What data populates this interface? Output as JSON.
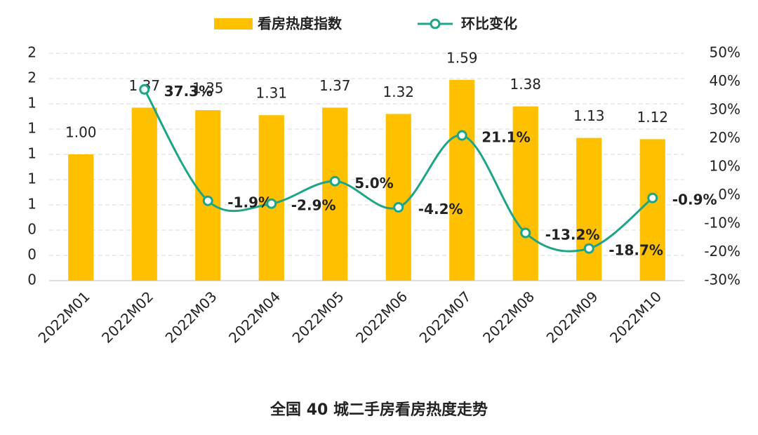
{
  "chart_data": {
    "type": "bar_line",
    "title": "全国 40 城二手房看房热度走势",
    "categories": [
      "2022M01",
      "2022M02",
      "2022M03",
      "2022M04",
      "2022M05",
      "2022M06",
      "2022M07",
      "2022M08",
      "2022M09",
      "2022M10"
    ],
    "series": [
      {
        "name": "看房热度指数",
        "color": "#FFC000",
        "type": "bar",
        "axis": "y",
        "values": [
          1.0,
          1.37,
          1.35,
          1.31,
          1.37,
          1.32,
          1.59,
          1.38,
          1.13,
          1.12
        ],
        "value_labels": [
          "1.00",
          "1.37",
          "1.35",
          "1.31",
          "1.37",
          "1.32",
          "1.59",
          "1.38",
          "1.13",
          "1.12"
        ]
      },
      {
        "name": "环比变化",
        "color": "#1DA587",
        "type": "line",
        "axis": "y2",
        "values": [
          null,
          37.3,
          -1.9,
          -2.9,
          5.0,
          -4.2,
          21.1,
          -13.2,
          -18.7,
          -0.9
        ],
        "value_labels": [
          null,
          "37.3%",
          "-1.9%",
          "-2.9%",
          "5.0%",
          "-4.2%",
          "21.1%",
          "-13.2%",
          "-18.7%",
          "-0.9%"
        ]
      }
    ],
    "ylim": [
      0,
      1.8
    ],
    "yticks": [
      {
        "value": 0,
        "label": "0"
      },
      {
        "value": 0.2,
        "label": "0"
      },
      {
        "value": 0.4,
        "label": "0"
      },
      {
        "value": 0.6,
        "label": "1"
      },
      {
        "value": 0.8,
        "label": "1"
      },
      {
        "value": 1.0,
        "label": "1"
      },
      {
        "value": 1.2,
        "label": "1"
      },
      {
        "value": 1.4,
        "label": "1"
      },
      {
        "value": 1.6,
        "label": "2"
      },
      {
        "value": 1.8,
        "label": "2"
      }
    ],
    "y2lim": [
      -30,
      50
    ],
    "y2ticks": [
      {
        "value": -30,
        "label": "-30%"
      },
      {
        "value": -20,
        "label": "-20%"
      },
      {
        "value": -10,
        "label": "-10%"
      },
      {
        "value": 0,
        "label": "0%"
      },
      {
        "value": 10,
        "label": "10%"
      },
      {
        "value": 20,
        "label": "20%"
      },
      {
        "value": 30,
        "label": "30%"
      },
      {
        "value": 40,
        "label": "40%"
      },
      {
        "value": 50,
        "label": "50%"
      }
    ],
    "grid": true,
    "legend": "top"
  }
}
